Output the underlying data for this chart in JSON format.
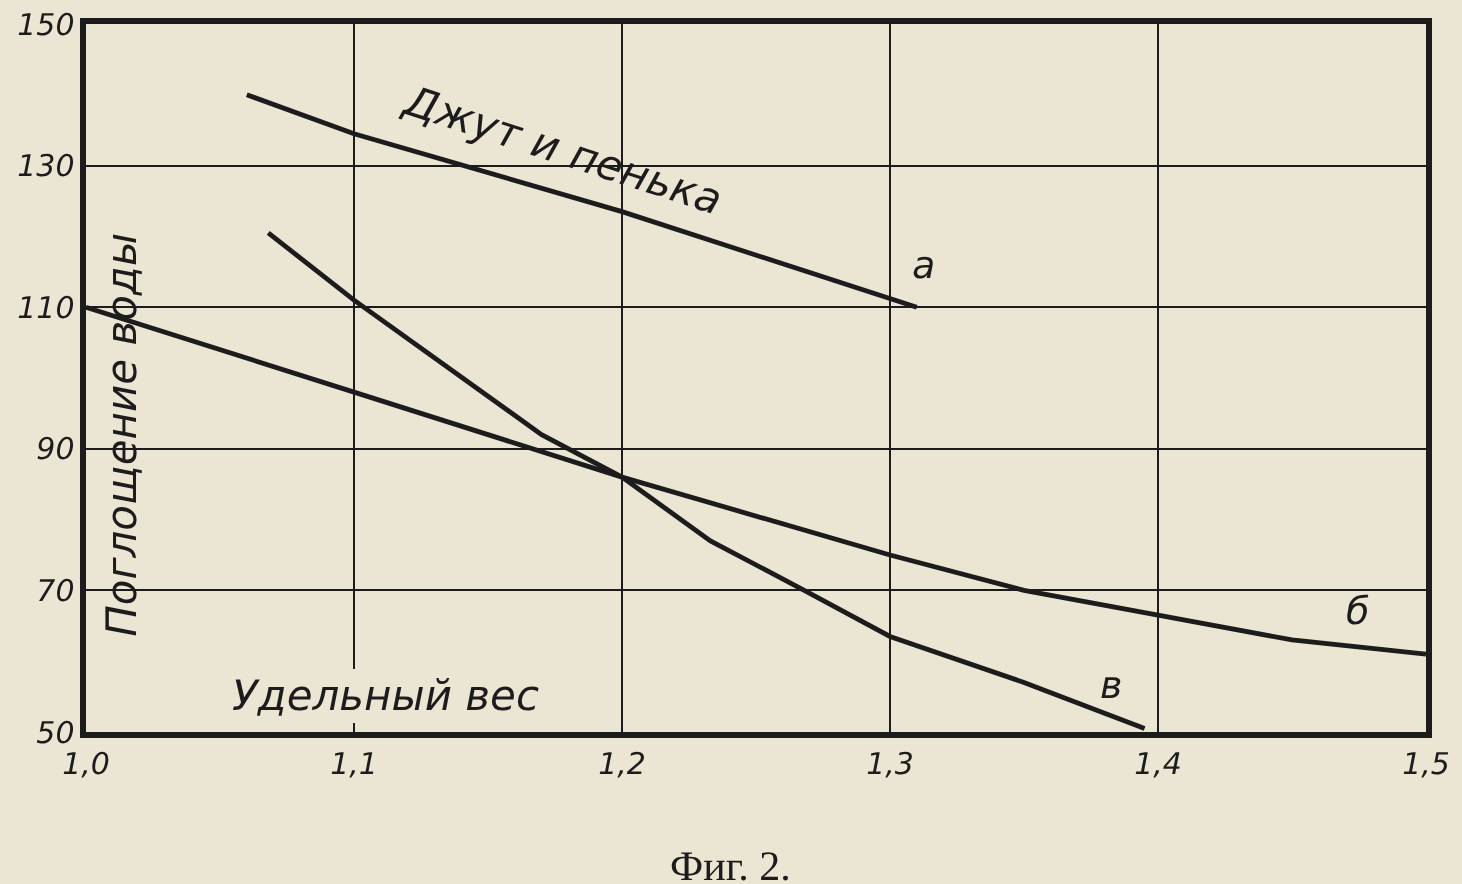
{
  "chart_data": {
    "type": "line",
    "xlabel": "Удельный вес",
    "ylabel": "Поглощение воды",
    "xlim": [
      1.0,
      1.5
    ],
    "xticks": [
      {
        "value": 1.0,
        "label": "1,0"
      },
      {
        "value": 1.1,
        "label": "1,1"
      },
      {
        "value": 1.2,
        "label": "1,2"
      },
      {
        "value": 1.3,
        "label": "1,3"
      },
      {
        "value": 1.4,
        "label": "1,4"
      },
      {
        "value": 1.5,
        "label": "1,5"
      }
    ],
    "ylim": [
      50,
      150
    ],
    "yticks": [
      50,
      70,
      90,
      110,
      130,
      150
    ],
    "grid": true,
    "legend": false,
    "series": [
      {
        "name": "а",
        "color": "#1c1c1c",
        "x": [
          1.06,
          1.1,
          1.2,
          1.31
        ],
        "values": [
          140,
          134.5,
          123.5,
          110
        ]
      },
      {
        "name": "б",
        "color": "#1c1c1c",
        "x": [
          1.0,
          1.1,
          1.2,
          1.3,
          1.35,
          1.4,
          1.45,
          1.5
        ],
        "values": [
          110,
          98,
          86,
          75,
          70,
          66.5,
          63,
          61
        ]
      },
      {
        "name": "в",
        "color": "#1c1c1c",
        "x": [
          1.068,
          1.1,
          1.17,
          1.2,
          1.233,
          1.268,
          1.3,
          1.35,
          1.395
        ],
        "values": [
          120.5,
          111,
          92,
          86,
          77,
          70,
          63.5,
          57,
          50.5
        ]
      }
    ],
    "annotations": [
      "Джут и пенька",
      "Фиг. 2."
    ]
  }
}
